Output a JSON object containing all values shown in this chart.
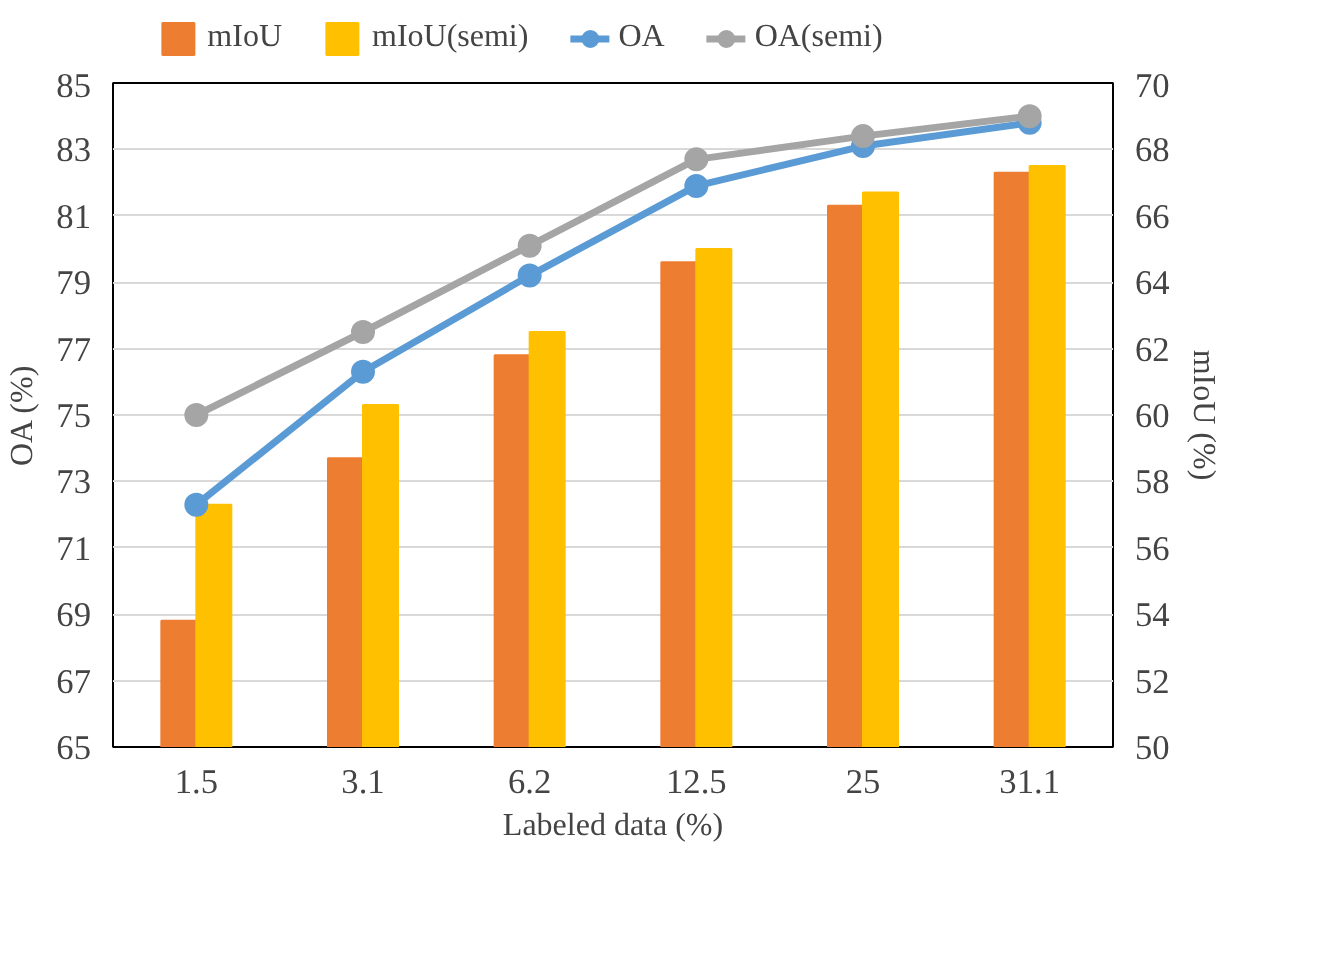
{
  "chart_data": {
    "type": "bar",
    "xlabel": "Labeled data (%)",
    "ylabel": "OA (%)",
    "y2label": "mIoU (%)",
    "categories": [
      "1.5",
      "3.1",
      "6.2",
      "12.5",
      "25",
      "31.1"
    ],
    "series": [
      {
        "name": "mIoU",
        "color": "#ed7d31",
        "axis": "y2",
        "values": [
          53.8,
          58.7,
          61.8,
          64.6,
          66.3,
          67.3
        ]
      },
      {
        "name": "mIoU(semi)",
        "color": "#ffc000",
        "axis": "y2",
        "values": [
          57.3,
          60.3,
          62.5,
          65.0,
          66.7,
          67.5
        ]
      },
      {
        "name": "OA",
        "color": "#5b9bd5",
        "type": "line",
        "values": [
          72.3,
          76.3,
          79.2,
          81.9,
          83.1,
          83.8
        ]
      },
      {
        "name": "OA(semi)",
        "color": "#a5a5a5",
        "type": "line",
        "values": [
          75.0,
          77.5,
          80.1,
          82.7,
          83.4,
          84.0
        ]
      }
    ],
    "ylim": [
      65,
      85
    ],
    "yticks": [
      65,
      67,
      69,
      71,
      73,
      75,
      77,
      79,
      81,
      83,
      85
    ],
    "y2lim": [
      50,
      70
    ],
    "y2ticks": [
      50,
      52,
      54,
      56,
      58,
      60,
      62,
      64,
      66,
      68,
      70
    ],
    "grid": "y",
    "legend": "top",
    "marker": "circle",
    "line_style": "solid"
  }
}
